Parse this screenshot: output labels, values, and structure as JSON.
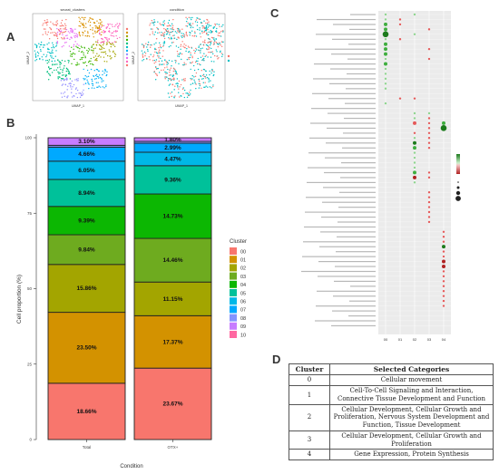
{
  "panel_labels": {
    "a": "A",
    "b": "B",
    "c": "C",
    "d": "D"
  },
  "panel_a": {
    "left_title": "seurat_clusters",
    "right_title": "condition",
    "xlabel": "UMAP_1",
    "ylabel": "UMAP_2",
    "cluster_colors": [
      "#f8766d",
      "#d89000",
      "#a3a500",
      "#39b600",
      "#00bf7d",
      "#00bfc4",
      "#00b0f6",
      "#9590ff",
      "#e76bf3",
      "#ff62bc",
      "#f8766d"
    ],
    "condition_colors": [
      "#f8766d",
      "#00bfc4"
    ]
  },
  "panel_d": {
    "headers": [
      "Cluster",
      "Selected Categories"
    ],
    "rows": [
      {
        "cluster": "0",
        "categories": "Cellular movement"
      },
      {
        "cluster": "1",
        "categories": "Cell-To-Cell Signaling and Interaction, Connective Tissue Development and Function"
      },
      {
        "cluster": "2",
        "categories": "Cellular Development, Cellular Growth and Proliferation, Nervous System Development and Function, Tissue Development"
      },
      {
        "cluster": "3",
        "categories": "Cellular Development, Cellular Growth and Proliferation"
      },
      {
        "cluster": "4",
        "categories": "Gene Expression, Protein Synthesis"
      }
    ]
  },
  "chart_data": [
    {
      "type": "bar",
      "stacked": true,
      "xlabel": "Condition",
      "ylabel": "Cell proportion (%)",
      "categories": [
        "Total",
        "OTX+"
      ],
      "ylim": [
        0,
        100
      ],
      "yticks": [
        0,
        25,
        50,
        75,
        100
      ],
      "legend_title": "Cluster",
      "legend_position": "right",
      "series": [
        {
          "name": "00",
          "color": "#f8766d",
          "values": [
            18.66,
            23.67
          ],
          "labels": [
            "18.66%",
            "23.67%"
          ]
        },
        {
          "name": "01",
          "color": "#d39200",
          "values": [
            23.5,
            17.37
          ],
          "labels": [
            "23.50%",
            "17.37%"
          ]
        },
        {
          "name": "02",
          "color": "#a3a500",
          "values": [
            15.86,
            11.15
          ],
          "labels": [
            "15.86%",
            "11.15%"
          ]
        },
        {
          "name": "03",
          "color": "#6eab1f",
          "values": [
            9.84,
            14.46
          ],
          "labels": [
            "9.84%",
            "14.46%"
          ]
        },
        {
          "name": "04",
          "color": "#0cb702",
          "values": [
            9.39,
            14.73
          ],
          "labels": [
            "9.39%",
            "14.73%"
          ]
        },
        {
          "name": "05",
          "color": "#00c19a",
          "values": [
            8.94,
            9.36
          ],
          "labels": [
            "8.94%",
            "9.36%"
          ]
        },
        {
          "name": "06",
          "color": "#00b8e7",
          "values": [
            6.05,
            4.47
          ],
          "labels": [
            "6.05%",
            "4.47%"
          ]
        },
        {
          "name": "07",
          "color": "#00a9ff",
          "values": [
            4.66,
            2.99
          ],
          "labels": [
            "4.66%",
            "2.99%"
          ]
        },
        {
          "name": "08",
          "color": "#8494ff",
          "values": [
            0.6,
            0.6
          ],
          "labels": [
            "",
            ""
          ]
        },
        {
          "name": "09",
          "color": "#c77cff",
          "values": [
            3.1,
            1.8
          ],
          "labels": [
            "3.10%",
            "1.80%"
          ]
        },
        {
          "name": "10",
          "color": "#ff68a1",
          "values": [
            0.5,
            0.5
          ],
          "labels": [
            "",
            ""
          ]
        }
      ]
    },
    {
      "type": "scatter",
      "subtype": "dot-plot",
      "xlabel": "",
      "ylabel": "",
      "x": [
        "00",
        "01",
        "02",
        "03",
        "04"
      ],
      "rows": 64,
      "note": "pathway dot matrix; row labels are too small to read in the source image",
      "points": [
        {
          "x": "00",
          "row": 0,
          "s": 1,
          "c": "#8fd68f"
        },
        {
          "x": "02",
          "row": 0,
          "s": 1,
          "c": "#8fd68f"
        },
        {
          "x": "00",
          "row": 1,
          "s": 1,
          "c": "#8fd68f"
        },
        {
          "x": "01",
          "row": 1,
          "s": 1,
          "c": "#e65a5a"
        },
        {
          "x": "00",
          "row": 2,
          "s": 2,
          "c": "#3fae3f"
        },
        {
          "x": "01",
          "row": 2,
          "s": 1,
          "c": "#e65a5a"
        },
        {
          "x": "00",
          "row": 3,
          "s": 2,
          "c": "#3fae3f"
        },
        {
          "x": "03",
          "row": 3,
          "s": 1,
          "c": "#e65a5a"
        },
        {
          "x": "00",
          "row": 4,
          "s": 3,
          "c": "#1c7a1c"
        },
        {
          "x": "02",
          "row": 4,
          "s": 1,
          "c": "#8fd68f"
        },
        {
          "x": "00",
          "row": 5,
          "s": 1,
          "c": "#8fd68f"
        },
        {
          "x": "01",
          "row": 5,
          "s": 1,
          "c": "#e65a5a"
        },
        {
          "x": "00",
          "row": 6,
          "s": 2,
          "c": "#3fae3f"
        },
        {
          "x": "00",
          "row": 7,
          "s": 2,
          "c": "#3fae3f"
        },
        {
          "x": "03",
          "row": 7,
          "s": 1,
          "c": "#e65a5a"
        },
        {
          "x": "00",
          "row": 8,
          "s": 2,
          "c": "#3fae3f"
        },
        {
          "x": "00",
          "row": 9,
          "s": 1,
          "c": "#8fd68f"
        },
        {
          "x": "03",
          "row": 9,
          "s": 1,
          "c": "#e65a5a"
        },
        {
          "x": "00",
          "row": 10,
          "s": 2,
          "c": "#3fae3f"
        },
        {
          "x": "00",
          "row": 11,
          "s": 1,
          "c": "#8fd68f"
        },
        {
          "x": "00",
          "row": 12,
          "s": 1,
          "c": "#8fd68f"
        },
        {
          "x": "00",
          "row": 13,
          "s": 1,
          "c": "#8fd68f"
        },
        {
          "x": "00",
          "row": 14,
          "s": 1,
          "c": "#8fd68f"
        },
        {
          "x": "00",
          "row": 15,
          "s": 1,
          "c": "#8fd68f"
        },
        {
          "x": "01",
          "row": 17,
          "s": 1,
          "c": "#e65a5a"
        },
        {
          "x": "02",
          "row": 17,
          "s": 1,
          "c": "#e65a5a"
        },
        {
          "x": "00",
          "row": 18,
          "s": 1,
          "c": "#8fd68f"
        },
        {
          "x": "02",
          "row": 20,
          "s": 1,
          "c": "#8fd68f"
        },
        {
          "x": "03",
          "row": 20,
          "s": 1,
          "c": "#8fd68f"
        },
        {
          "x": "02",
          "row": 21,
          "s": 1,
          "c": "#8fd68f"
        },
        {
          "x": "03",
          "row": 21,
          "s": 1,
          "c": "#e65a5a"
        },
        {
          "x": "02",
          "row": 22,
          "s": 2,
          "c": "#e65a5a"
        },
        {
          "x": "03",
          "row": 22,
          "s": 1,
          "c": "#e65a5a"
        },
        {
          "x": "04",
          "row": 22,
          "s": 2,
          "c": "#3fae3f"
        },
        {
          "x": "03",
          "row": 23,
          "s": 1,
          "c": "#e65a5a"
        },
        {
          "x": "04",
          "row": 23,
          "s": 3,
          "c": "#1c7a1c"
        },
        {
          "x": "02",
          "row": 24,
          "s": 1,
          "c": "#e65a5a"
        },
        {
          "x": "03",
          "row": 24,
          "s": 1,
          "c": "#e65a5a"
        },
        {
          "x": "02",
          "row": 25,
          "s": 1,
          "c": "#8fd68f"
        },
        {
          "x": "03",
          "row": 25,
          "s": 1,
          "c": "#e65a5a"
        },
        {
          "x": "02",
          "row": 26,
          "s": 2,
          "c": "#1c7a1c"
        },
        {
          "x": "03",
          "row": 26,
          "s": 1,
          "c": "#e65a5a"
        },
        {
          "x": "02",
          "row": 27,
          "s": 2,
          "c": "#3fae3f"
        },
        {
          "x": "03",
          "row": 27,
          "s": 1,
          "c": "#e65a5a"
        },
        {
          "x": "02",
          "row": 28,
          "s": 1,
          "c": "#8fd68f"
        },
        {
          "x": "02",
          "row": 29,
          "s": 1,
          "c": "#8fd68f"
        },
        {
          "x": "02",
          "row": 30,
          "s": 1,
          "c": "#8fd68f"
        },
        {
          "x": "02",
          "row": 31,
          "s": 1,
          "c": "#8fd68f"
        },
        {
          "x": "02",
          "row": 32,
          "s": 2,
          "c": "#3fae3f"
        },
        {
          "x": "03",
          "row": 32,
          "s": 1,
          "c": "#e65a5a"
        },
        {
          "x": "02",
          "row": 33,
          "s": 2,
          "c": "#b02222"
        },
        {
          "x": "03",
          "row": 33,
          "s": 1,
          "c": "#e65a5a"
        },
        {
          "x": "02",
          "row": 34,
          "s": 1,
          "c": "#8fd68f"
        },
        {
          "x": "03",
          "row": 36,
          "s": 1,
          "c": "#e65a5a"
        },
        {
          "x": "03",
          "row": 37,
          "s": 1,
          "c": "#e65a5a"
        },
        {
          "x": "03",
          "row": 38,
          "s": 1,
          "c": "#e65a5a"
        },
        {
          "x": "03",
          "row": 39,
          "s": 1,
          "c": "#e65a5a"
        },
        {
          "x": "03",
          "row": 40,
          "s": 1,
          "c": "#e65a5a"
        },
        {
          "x": "03",
          "row": 41,
          "s": 1,
          "c": "#e65a5a"
        },
        {
          "x": "03",
          "row": 42,
          "s": 1,
          "c": "#e65a5a"
        },
        {
          "x": "04",
          "row": 44,
          "s": 1,
          "c": "#e65a5a"
        },
        {
          "x": "04",
          "row": 45,
          "s": 1,
          "c": "#e65a5a"
        },
        {
          "x": "04",
          "row": 46,
          "s": 1,
          "c": "#e65a5a"
        },
        {
          "x": "04",
          "row": 47,
          "s": 2,
          "c": "#1c7a1c"
        },
        {
          "x": "04",
          "row": 48,
          "s": 1,
          "c": "#e65a5a"
        },
        {
          "x": "04",
          "row": 49,
          "s": 1,
          "c": "#e65a5a"
        },
        {
          "x": "04",
          "row": 50,
          "s": 2,
          "c": "#b02222"
        },
        {
          "x": "04",
          "row": 51,
          "s": 2,
          "c": "#b02222"
        },
        {
          "x": "04",
          "row": 52,
          "s": 1,
          "c": "#e65a5a"
        },
        {
          "x": "04",
          "row": 53,
          "s": 1,
          "c": "#e65a5a"
        },
        {
          "x": "04",
          "row": 54,
          "s": 1,
          "c": "#e65a5a"
        },
        {
          "x": "04",
          "row": 55,
          "s": 1,
          "c": "#e65a5a"
        },
        {
          "x": "04",
          "row": 56,
          "s": 1,
          "c": "#e65a5a"
        },
        {
          "x": "04",
          "row": 57,
          "s": 1,
          "c": "#e65a5a"
        },
        {
          "x": "04",
          "row": 58,
          "s": 1,
          "c": "#e65a5a"
        },
        {
          "x": "04",
          "row": 59,
          "s": 1,
          "c": "#e65a5a"
        }
      ]
    }
  ]
}
